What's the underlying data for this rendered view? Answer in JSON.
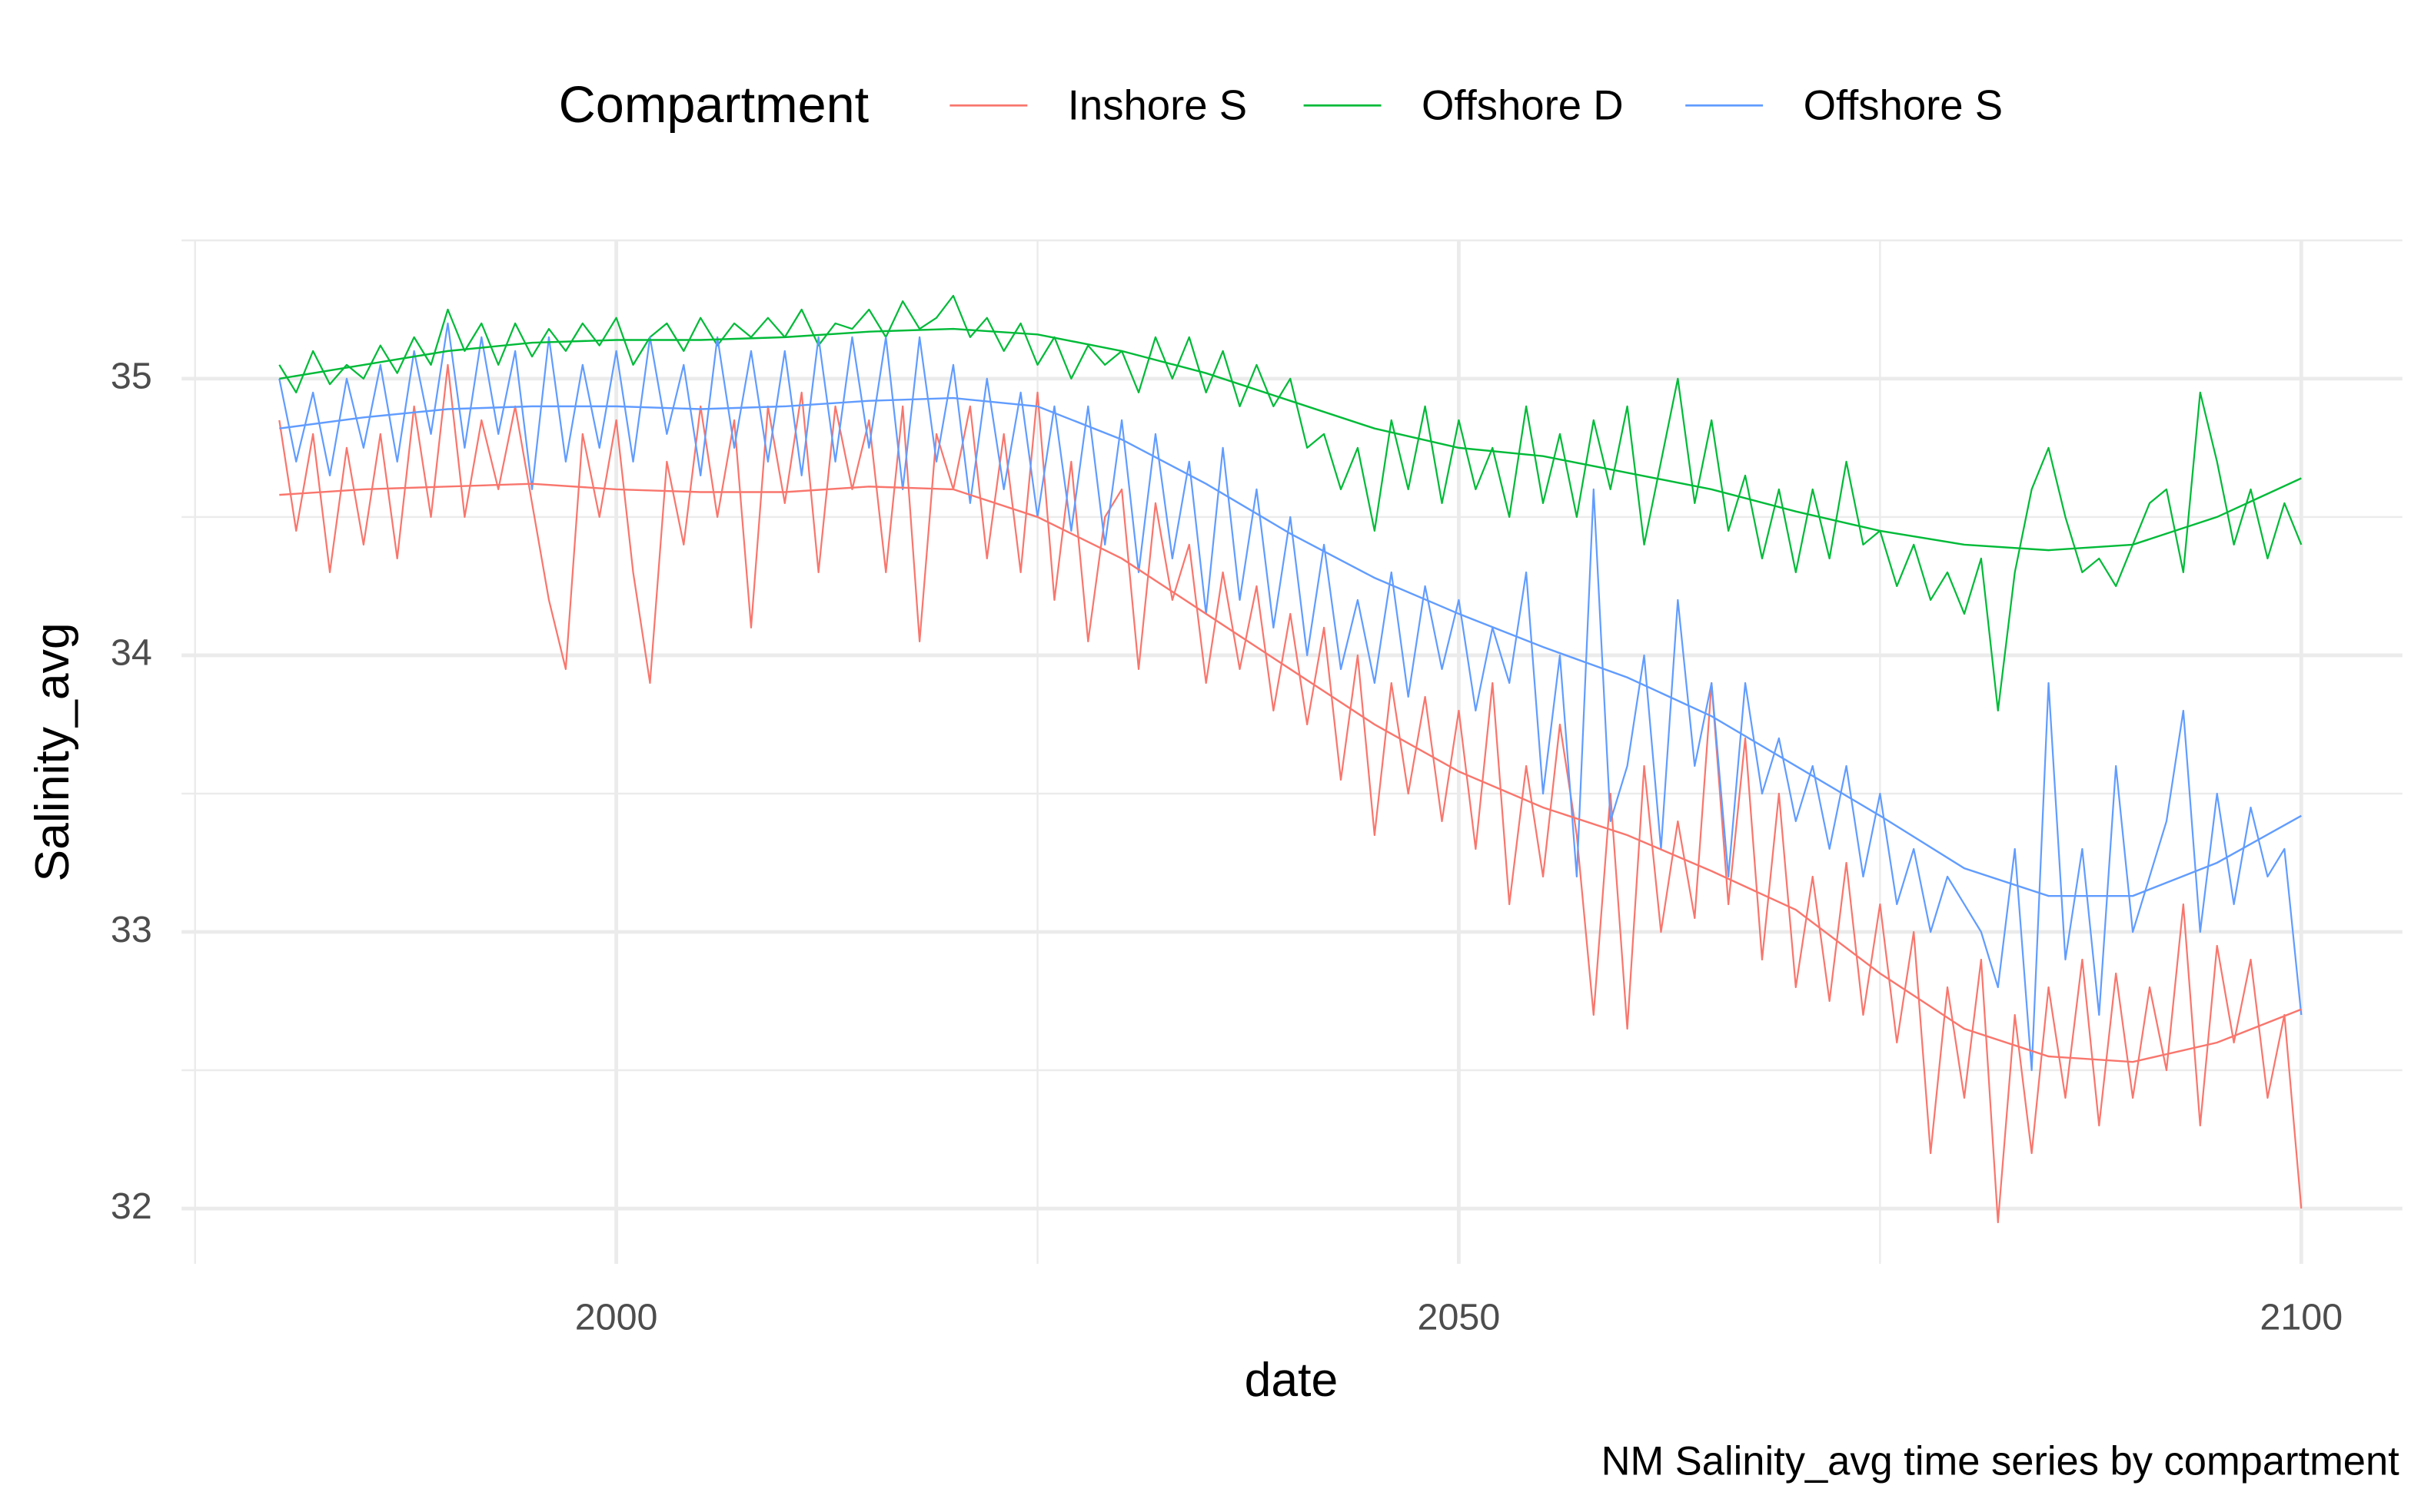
{
  "chart_data": {
    "type": "line",
    "caption": "NM Salinity_avg time series by compartment",
    "xlabel": "date",
    "ylabel": "Salinity_avg",
    "legend_title": "Compartment",
    "legend_position": "top",
    "grid": true,
    "xlim": [
      1974.2,
      2106
    ],
    "ylim": [
      31.8,
      35.5
    ],
    "xticks": [
      2000,
      2050,
      2100
    ],
    "yticks": [
      32,
      33,
      34,
      35
    ],
    "x_minor_ticks": [
      1975,
      2025,
      2075
    ],
    "y_minor_ticks": [
      32.5,
      33.5,
      34.5,
      35.5
    ],
    "x": [
      1980,
      1981,
      1982,
      1983,
      1984,
      1985,
      1986,
      1987,
      1988,
      1989,
      1990,
      1991,
      1992,
      1993,
      1994,
      1995,
      1996,
      1997,
      1998,
      1999,
      2000,
      2001,
      2002,
      2003,
      2004,
      2005,
      2006,
      2007,
      2008,
      2009,
      2010,
      2011,
      2012,
      2013,
      2014,
      2015,
      2016,
      2017,
      2018,
      2019,
      2020,
      2021,
      2022,
      2023,
      2024,
      2025,
      2026,
      2027,
      2028,
      2029,
      2030,
      2031,
      2032,
      2033,
      2034,
      2035,
      2036,
      2037,
      2038,
      2039,
      2040,
      2041,
      2042,
      2043,
      2044,
      2045,
      2046,
      2047,
      2048,
      2049,
      2050,
      2051,
      2052,
      2053,
      2054,
      2055,
      2056,
      2057,
      2058,
      2059,
      2060,
      2061,
      2062,
      2063,
      2064,
      2065,
      2066,
      2067,
      2068,
      2069,
      2070,
      2071,
      2072,
      2073,
      2074,
      2075,
      2076,
      2077,
      2078,
      2079,
      2080,
      2081,
      2082,
      2083,
      2084,
      2085,
      2086,
      2087,
      2088,
      2089,
      2090,
      2091,
      2092,
      2093,
      2094,
      2095,
      2096,
      2097,
      2098,
      2099,
      2100
    ],
    "trend_x": [
      1980,
      1985,
      1990,
      1995,
      2000,
      2005,
      2010,
      2015,
      2020,
      2025,
      2030,
      2035,
      2040,
      2045,
      2050,
      2055,
      2060,
      2065,
      2070,
      2075,
      2080,
      2085,
      2090,
      2095,
      2100
    ],
    "series": [
      {
        "name": "Inshore S",
        "color": "#F8766D",
        "values": [
          34.85,
          34.45,
          34.8,
          34.3,
          34.75,
          34.4,
          34.8,
          34.35,
          34.9,
          34.5,
          35.05,
          34.5,
          34.85,
          34.6,
          34.9,
          34.55,
          34.2,
          33.95,
          34.8,
          34.5,
          34.85,
          34.3,
          33.9,
          34.7,
          34.4,
          34.9,
          34.5,
          34.85,
          34.1,
          34.9,
          34.55,
          34.95,
          34.3,
          34.9,
          34.6,
          34.85,
          34.3,
          34.9,
          34.05,
          34.8,
          34.6,
          34.9,
          34.35,
          34.8,
          34.3,
          34.95,
          34.2,
          34.7,
          34.05,
          34.5,
          34.6,
          33.95,
          34.55,
          34.2,
          34.4,
          33.9,
          34.3,
          33.95,
          34.25,
          33.8,
          34.15,
          33.75,
          34.1,
          33.55,
          34.0,
          33.35,
          33.9,
          33.5,
          33.85,
          33.4,
          33.8,
          33.3,
          33.9,
          33.1,
          33.6,
          33.2,
          33.75,
          33.35,
          32.7,
          33.5,
          32.65,
          33.6,
          33.0,
          33.4,
          33.05,
          33.9,
          33.1,
          33.7,
          32.9,
          33.5,
          32.8,
          33.2,
          32.75,
          33.25,
          32.7,
          33.1,
          32.6,
          33.0,
          32.2,
          32.8,
          32.4,
          32.9,
          31.95,
          32.7,
          32.2,
          32.8,
          32.4,
          32.9,
          32.3,
          32.85,
          32.4,
          32.8,
          32.5,
          33.1,
          32.3,
          32.95,
          32.6,
          32.9,
          32.4,
          32.7,
          32.0
        ],
        "trend": [
          34.58,
          34.6,
          34.61,
          34.62,
          34.6,
          34.59,
          34.59,
          34.61,
          34.6,
          34.5,
          34.35,
          34.15,
          33.95,
          33.75,
          33.58,
          33.45,
          33.35,
          33.22,
          33.08,
          32.85,
          32.65,
          32.55,
          32.53,
          32.6,
          32.72
        ]
      },
      {
        "name": "Offshore D",
        "color": "#00BA38",
        "values": [
          35.05,
          34.95,
          35.1,
          34.98,
          35.05,
          35.0,
          35.12,
          35.02,
          35.15,
          35.05,
          35.25,
          35.1,
          35.2,
          35.05,
          35.2,
          35.08,
          35.18,
          35.1,
          35.2,
          35.12,
          35.22,
          35.05,
          35.15,
          35.2,
          35.1,
          35.22,
          35.12,
          35.2,
          35.15,
          35.22,
          35.15,
          35.25,
          35.12,
          35.2,
          35.18,
          35.25,
          35.15,
          35.28,
          35.18,
          35.22,
          35.3,
          35.15,
          35.22,
          35.1,
          35.2,
          35.05,
          35.15,
          35.0,
          35.12,
          35.05,
          35.1,
          34.95,
          35.15,
          35.0,
          35.15,
          34.95,
          35.1,
          34.9,
          35.05,
          34.9,
          35.0,
          34.75,
          34.8,
          34.6,
          34.75,
          34.45,
          34.85,
          34.6,
          34.9,
          34.55,
          34.85,
          34.6,
          34.75,
          34.5,
          34.9,
          34.55,
          34.8,
          34.5,
          34.85,
          34.6,
          34.9,
          34.4,
          34.7,
          35.0,
          34.55,
          34.85,
          34.45,
          34.65,
          34.35,
          34.6,
          34.3,
          34.6,
          34.35,
          34.7,
          34.4,
          34.45,
          34.25,
          34.4,
          34.2,
          34.3,
          34.15,
          34.35,
          33.8,
          34.3,
          34.6,
          34.75,
          34.5,
          34.3,
          34.35,
          34.25,
          34.4,
          34.55,
          34.6,
          34.3,
          34.95,
          34.7,
          34.4,
          34.6,
          34.35,
          34.55,
          34.4
        ],
        "trend": [
          35.0,
          35.05,
          35.1,
          35.13,
          35.14,
          35.14,
          35.15,
          35.17,
          35.18,
          35.16,
          35.1,
          35.02,
          34.92,
          34.82,
          34.75,
          34.72,
          34.66,
          34.6,
          34.52,
          34.45,
          34.4,
          34.38,
          34.4,
          34.5,
          34.64
        ]
      },
      {
        "name": "Offshore S",
        "color": "#619CFF",
        "values": [
          35.0,
          34.7,
          34.95,
          34.65,
          35.0,
          34.75,
          35.05,
          34.7,
          35.1,
          34.8,
          35.2,
          34.75,
          35.15,
          34.8,
          35.1,
          34.6,
          35.15,
          34.7,
          35.05,
          34.75,
          35.1,
          34.7,
          35.15,
          34.8,
          35.05,
          34.65,
          35.15,
          34.75,
          35.1,
          34.7,
          35.1,
          34.65,
          35.15,
          34.7,
          35.15,
          34.75,
          35.15,
          34.6,
          35.15,
          34.7,
          35.05,
          34.55,
          35.0,
          34.6,
          34.95,
          34.5,
          34.9,
          34.45,
          34.9,
          34.4,
          34.85,
          34.3,
          34.8,
          34.35,
          34.7,
          34.15,
          34.75,
          34.2,
          34.6,
          34.1,
          34.5,
          34.0,
          34.4,
          33.95,
          34.2,
          33.9,
          34.3,
          33.85,
          34.25,
          33.95,
          34.2,
          33.8,
          34.1,
          33.9,
          34.3,
          33.5,
          34.0,
          33.2,
          34.6,
          33.4,
          33.6,
          34.0,
          33.3,
          34.2,
          33.6,
          33.9,
          33.2,
          33.9,
          33.5,
          33.7,
          33.4,
          33.6,
          33.3,
          33.6,
          33.2,
          33.5,
          33.1,
          33.3,
          33.0,
          33.2,
          33.1,
          33.0,
          32.8,
          33.3,
          32.5,
          33.9,
          32.9,
          33.3,
          32.7,
          33.6,
          33.0,
          33.2,
          33.4,
          33.8,
          33.0,
          33.5,
          33.1,
          33.45,
          33.2,
          33.3,
          32.7
        ],
        "trend": [
          34.82,
          34.86,
          34.89,
          34.9,
          34.9,
          34.89,
          34.9,
          34.92,
          34.93,
          34.9,
          34.78,
          34.62,
          34.44,
          34.28,
          34.15,
          34.03,
          33.92,
          33.78,
          33.6,
          33.42,
          33.23,
          33.13,
          33.13,
          33.25,
          33.42
        ]
      }
    ]
  }
}
